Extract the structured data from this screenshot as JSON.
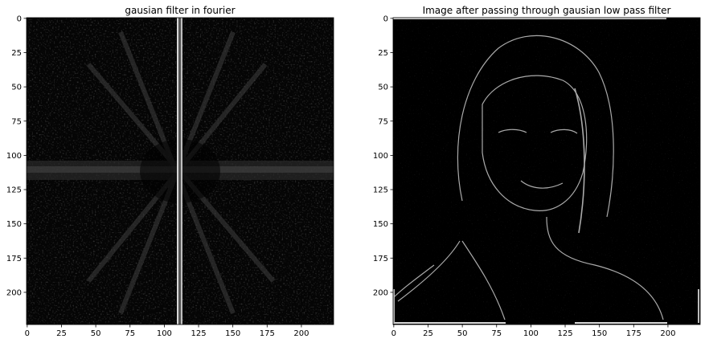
{
  "chart_data": [
    {
      "type": "heatmap",
      "title": "gausian filter in fourier",
      "xlabel": "",
      "ylabel": "",
      "colormap": "gray",
      "xlim": [
        -0.5,
        223.5
      ],
      "ylim": [
        223.5,
        -0.5
      ],
      "xticks": [
        0,
        25,
        50,
        75,
        100,
        125,
        150,
        175,
        200
      ],
      "yticks": [
        0,
        25,
        50,
        75,
        100,
        125,
        150,
        175,
        200
      ],
      "grid": false
    },
    {
      "type": "heatmap",
      "title": "Image after passing through gausian low pass filter",
      "xlabel": "",
      "ylabel": "",
      "colormap": "gray",
      "xlim": [
        -0.5,
        223.5
      ],
      "ylim": [
        223.5,
        -0.5
      ],
      "xticks": [
        0,
        25,
        50,
        75,
        100,
        125,
        150,
        175,
        200
      ],
      "yticks": [
        0,
        25,
        50,
        75,
        100,
        125,
        150,
        175,
        200
      ],
      "grid": false
    }
  ]
}
